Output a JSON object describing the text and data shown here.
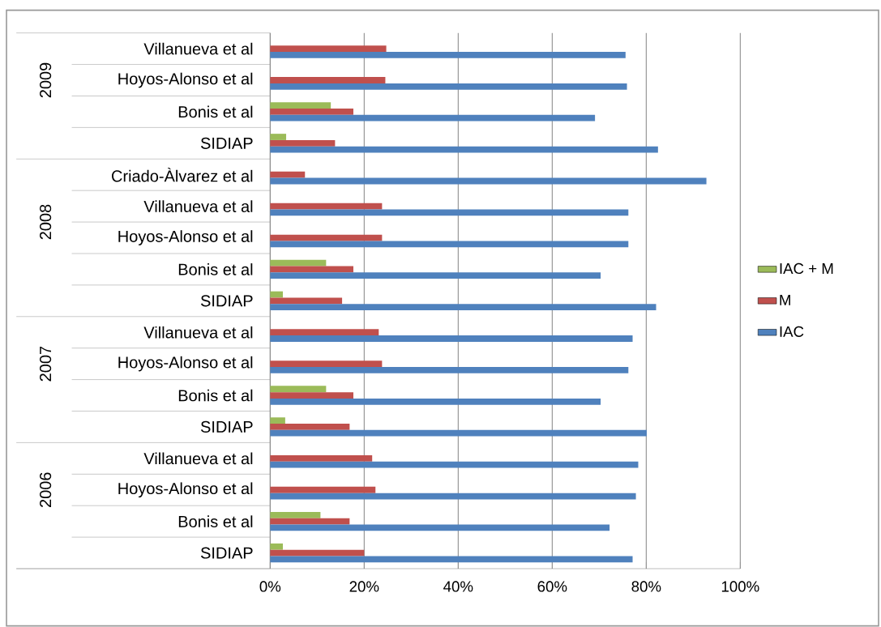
{
  "chart_data": {
    "type": "bar",
    "orientation": "horizontal",
    "categories": [
      "Villanueva et al",
      "Hoyos-Alonso et al",
      "Bonis et al",
      "SIDIAP",
      "Criado-Àlvarez et al",
      "Villanueva et al",
      "Hoyos-Alonso et al",
      "Bonis et al",
      "SIDIAP",
      "Villanueva et al",
      "Hoyos-Alonso et al",
      "Bonis et al",
      "SIDIAP",
      "Villanueva et al",
      "Hoyos-Alonso et al",
      "Bonis et al",
      "SIDIAP"
    ],
    "series": [
      {
        "name": "IAC + M",
        "color": "#9bbb59",
        "values": [
          null,
          null,
          12.9,
          3.4,
          null,
          null,
          null,
          11.9,
          2.7,
          null,
          null,
          11.9,
          3.2,
          null,
          null,
          10.7,
          2.7
        ]
      },
      {
        "name": "M",
        "color": "#c0504d",
        "values": [
          24.7,
          24.5,
          17.7,
          13.8,
          7.4,
          23.8,
          23.8,
          17.7,
          15.3,
          23.1,
          23.8,
          17.7,
          16.9,
          21.7,
          22.4,
          16.9,
          20.0
        ]
      },
      {
        "name": "IAC",
        "color": "#4f81bd",
        "values": [
          75.6,
          75.9,
          69.1,
          82.5,
          92.8,
          76.2,
          76.2,
          70.3,
          82.1,
          77.1,
          76.2,
          70.3,
          80.1,
          78.3,
          77.8,
          72.2,
          77.1
        ]
      }
    ],
    "annotations": [
      "2009",
      "2008",
      "2007",
      "2006"
    ],
    "xlim": [
      0,
      100
    ],
    "xticks": [
      {
        "value": 0,
        "label": "0%"
      },
      {
        "value": 20,
        "label": "20%"
      },
      {
        "value": 40,
        "label": "40%"
      },
      {
        "value": 60,
        "label": "60%"
      },
      {
        "value": 80,
        "label": "80%"
      },
      {
        "value": 100,
        "label": "100%"
      }
    ],
    "grid": "x",
    "legend": "right"
  }
}
